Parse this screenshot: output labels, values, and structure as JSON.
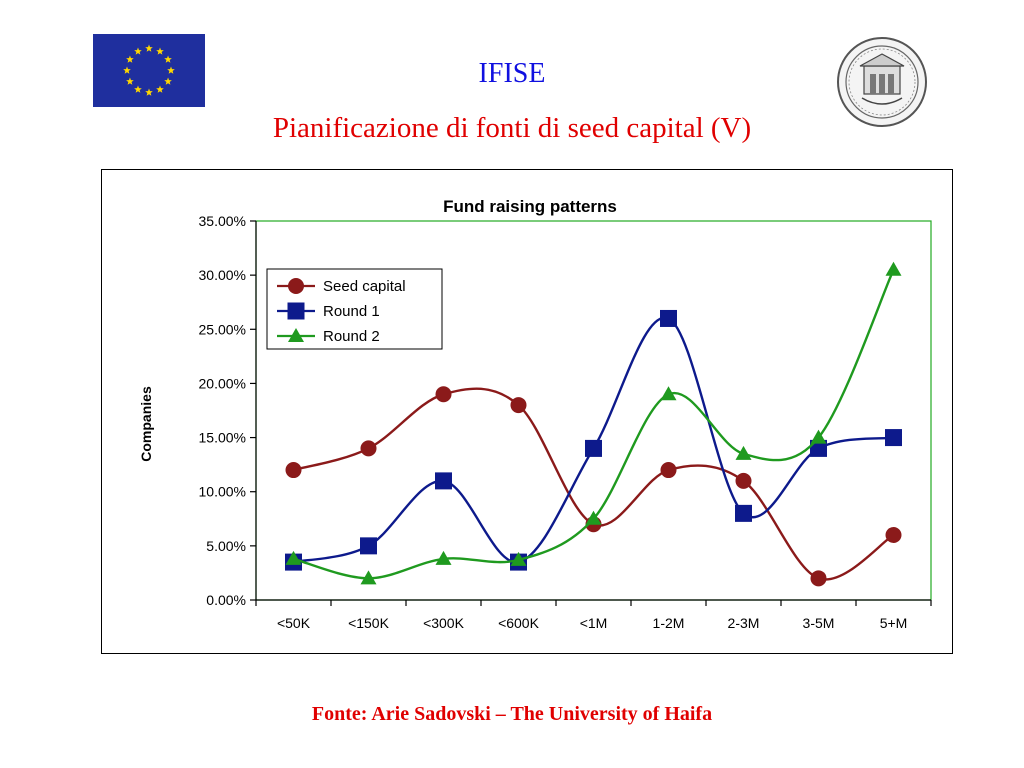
{
  "slide": {
    "title": "IFISE",
    "subtitle": "Pianificazione di fonti di seed capital (V)",
    "source": "Fonte: Arie Sadovski – The University of Haifa"
  },
  "logos": {
    "left": "eu-flag",
    "right": "university-seal",
    "flag_blue": "#1f2f9e",
    "flag_star": "#ffd700"
  },
  "chart_data": {
    "type": "line",
    "title": "Fund raising patterns",
    "xlabel": "",
    "ylabel": "Companies",
    "ylim": [
      0,
      35
    ],
    "y_ticks": [
      "0.00%",
      "5.00%",
      "10.00%",
      "15.00%",
      "20.00%",
      "25.00%",
      "30.00%",
      "35.00%"
    ],
    "categories": [
      "<50K",
      "<150K",
      "<300K",
      "<600K",
      "<1M",
      "1-2M",
      "2-3M",
      "3-5M",
      "5+M"
    ],
    "legend_placement": "top-left",
    "grid": false,
    "plot_border_color": "#22aa22",
    "series": [
      {
        "name": "Seed capital",
        "color": "#8b1a1a",
        "marker": "circle",
        "values": [
          12,
          14,
          19,
          18,
          7,
          12,
          11,
          2,
          6
        ]
      },
      {
        "name": "Round 1",
        "color": "#0d1a8c",
        "marker": "square",
        "values": [
          3.5,
          5,
          11,
          3.5,
          14,
          26,
          8,
          14,
          15
        ]
      },
      {
        "name": "Round 2",
        "color": "#1f9a1f",
        "marker": "triangle",
        "values": [
          3.8,
          2,
          3.8,
          3.7,
          7.5,
          19,
          13.5,
          15,
          30.5
        ]
      }
    ]
  }
}
